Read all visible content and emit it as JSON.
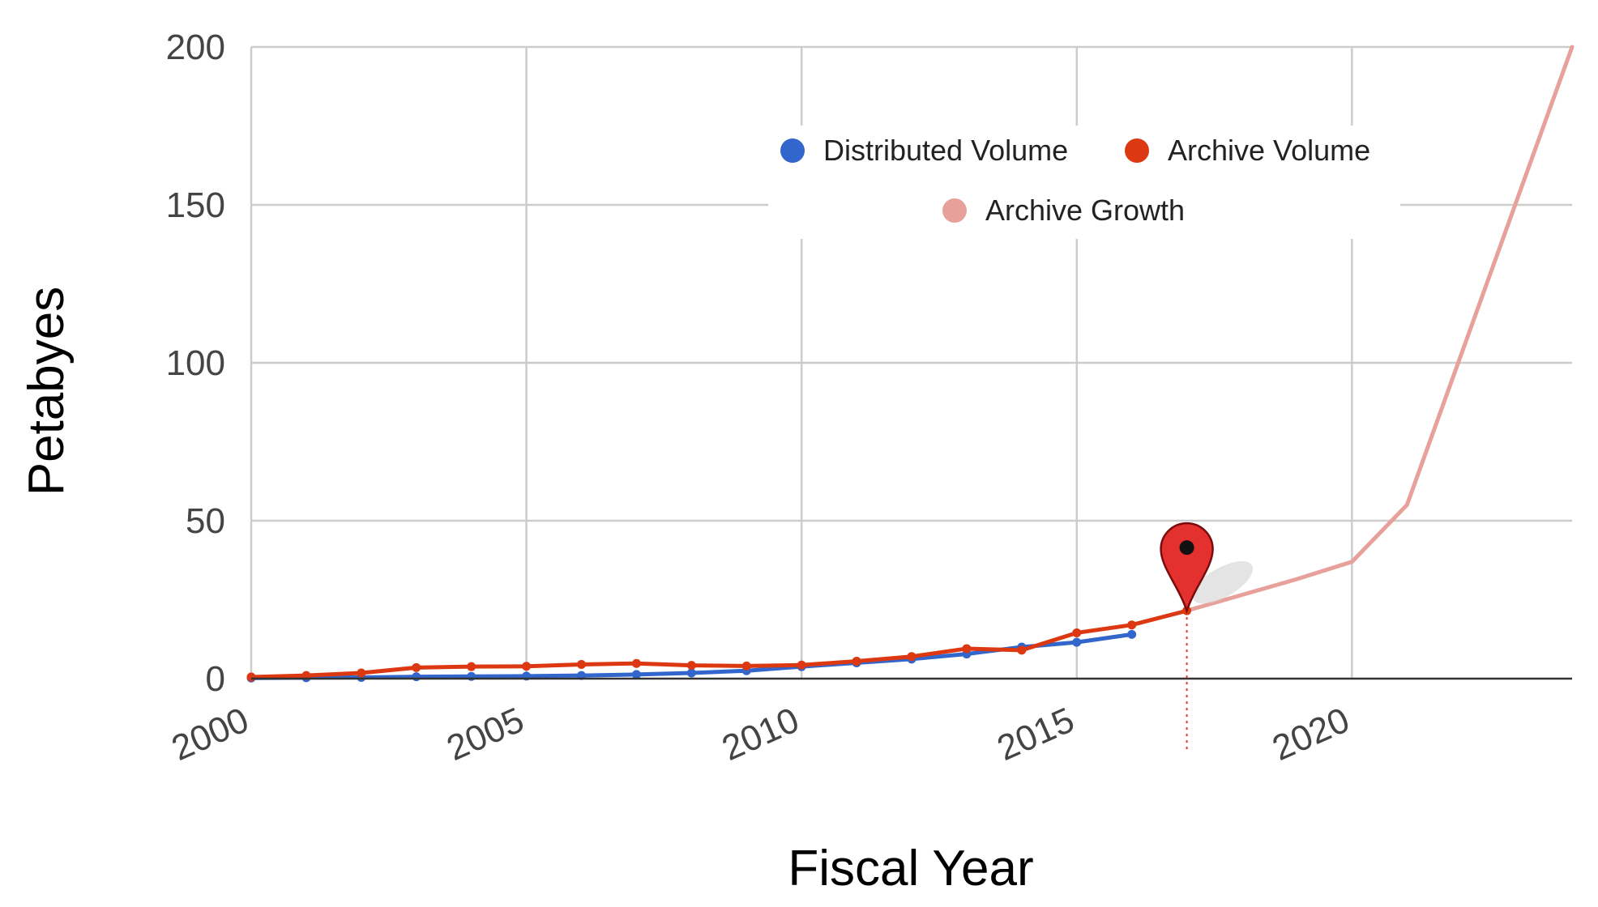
{
  "chart_data": {
    "type": "line",
    "title": "",
    "xlabel": "Fiscal Year",
    "ylabel": "Petabyes",
    "xlim": [
      2000,
      2024
    ],
    "ylim": [
      0,
      200
    ],
    "x_ticks": [
      2000,
      2005,
      2010,
      2015,
      2020
    ],
    "y_ticks": [
      0,
      50,
      100,
      150,
      200
    ],
    "grid": true,
    "legend_position": "top-center",
    "series": [
      {
        "name": "Distributed Volume",
        "color": "#3366cc",
        "x": [
          2000,
          2001,
          2002,
          2003,
          2004,
          2005,
          2006,
          2007,
          2008,
          2009,
          2010,
          2011,
          2012,
          2013,
          2014,
          2015,
          2016
        ],
        "y": [
          0.2,
          0.3,
          0.4,
          0.6,
          0.7,
          0.8,
          1.0,
          1.3,
          1.8,
          2.5,
          3.8,
          5.0,
          6.2,
          7.8,
          10.0,
          11.5,
          14.0
        ]
      },
      {
        "name": "Archive Volume",
        "color": "#dc3912",
        "x": [
          2000,
          2001,
          2002,
          2003,
          2004,
          2005,
          2006,
          2007,
          2008,
          2009,
          2010,
          2011,
          2012,
          2013,
          2014,
          2015,
          2016,
          2017
        ],
        "y": [
          0.5,
          1.0,
          1.8,
          3.5,
          3.8,
          3.9,
          4.5,
          4.8,
          4.2,
          4.0,
          4.3,
          5.5,
          7.0,
          9.5,
          9.0,
          14.5,
          17.0,
          21.5
        ]
      },
      {
        "name": "Archive Growth",
        "color": "#e8a09a",
        "x": [
          2017,
          2018,
          2019,
          2020,
          2021,
          2024
        ],
        "y": [
          21.5,
          26.5,
          31.5,
          37.0,
          55.0,
          200.0
        ]
      }
    ],
    "annotations": [
      {
        "type": "map-pin-marker",
        "x": 2017,
        "y": 21.5,
        "color": "#e53030"
      }
    ]
  }
}
